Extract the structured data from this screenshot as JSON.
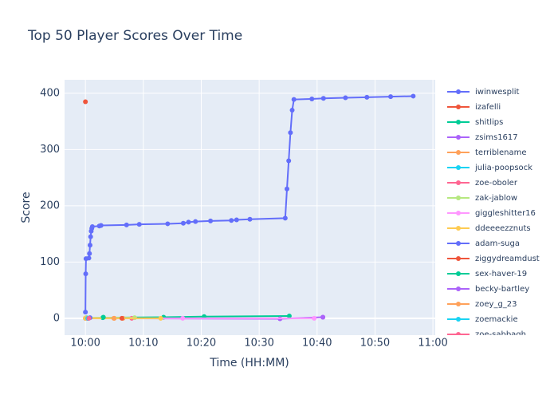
{
  "chart_data": {
    "type": "line",
    "title": "Top 50 Player Scores Over Time",
    "x_label": "Time (HH:MM)",
    "y_label": "Score",
    "xlim": [
      -3.6,
      60.4
    ],
    "ylim": [
      -30,
      424
    ],
    "xticks": [
      {
        "value": 0,
        "label": "10:00"
      },
      {
        "value": 10,
        "label": "10:10"
      },
      {
        "value": 20,
        "label": "10:20"
      },
      {
        "value": 30,
        "label": "10:30"
      },
      {
        "value": 40,
        "label": "10:40"
      },
      {
        "value": 50,
        "label": "10:50"
      },
      {
        "value": 60,
        "label": "11:00"
      }
    ],
    "yticks": [
      0,
      100,
      200,
      300,
      400
    ],
    "grid": true,
    "legend": "right",
    "series": [
      {
        "name": "iwinwesplit",
        "color": "#636efa",
        "x": [
          0,
          0.05,
          0.1,
          0.6,
          0.7,
          0.8,
          0.9,
          1.0,
          1.1,
          1.2,
          2.4,
          2.7,
          7.1,
          9.3,
          14.2,
          16.9,
          17.8,
          19,
          21.6,
          25.2,
          26.1,
          28.4,
          34.5,
          34.8,
          35.1,
          35.4,
          35.7,
          36,
          39.1,
          41.1,
          44.9,
          48.6,
          52.7,
          56.6
        ],
        "values": [
          11,
          79,
          106,
          107,
          115,
          130,
          145,
          155,
          160,
          163,
          164,
          165,
          166,
          167,
          168,
          169,
          171,
          172,
          173,
          174,
          175,
          176,
          178,
          230,
          280,
          330,
          370,
          389,
          390,
          391,
          392,
          393,
          394,
          395
        ]
      },
      {
        "name": "izafelli",
        "color": "#ef553b",
        "x": [
          0
        ],
        "values": [
          385
        ]
      },
      {
        "name": "shitlips",
        "color": "#00cc96",
        "x": [
          0,
          3,
          13.5,
          20.5,
          35.2
        ],
        "values": [
          0,
          1,
          2,
          3,
          4
        ]
      },
      {
        "name": "zsims1617",
        "color": "#ab63fa",
        "x": [
          0,
          33.6,
          41
        ],
        "values": [
          0,
          -1,
          2
        ]
      },
      {
        "name": "terriblename",
        "color": "#ffa15a",
        "x": [
          0,
          5,
          6.5
        ],
        "values": [
          0,
          0,
          0
        ]
      },
      {
        "name": "julia-poopsock",
        "color": "#19d3f3",
        "x": [
          0.2
        ],
        "values": [
          1
        ]
      },
      {
        "name": "zoe-oboler",
        "color": "#ff6692",
        "x": [
          0.3,
          8
        ],
        "values": [
          0,
          0
        ]
      },
      {
        "name": "zak-jablow",
        "color": "#b6e880",
        "x": [
          0.1,
          8.5
        ],
        "values": [
          1,
          1
        ]
      },
      {
        "name": "giggleshitter16",
        "color": "#ff97ff",
        "x": [
          0,
          16.8,
          39.5
        ],
        "values": [
          0,
          0,
          0
        ]
      },
      {
        "name": "ddeeeezznuts",
        "color": "#fecb52",
        "x": [
          0,
          13
        ],
        "values": [
          0,
          0
        ]
      },
      {
        "name": "adam-suga",
        "color": "#636efa",
        "x": [
          0.5,
          0.8
        ],
        "values": [
          0,
          1
        ]
      },
      {
        "name": "ziggydreamdust",
        "color": "#ef553b",
        "x": [
          6.3
        ],
        "values": [
          0
        ]
      },
      {
        "name": "sex-haver-19",
        "color": "#00cc96",
        "x": [
          3.1
        ],
        "values": [
          2
        ]
      },
      {
        "name": "becky-bartley",
        "color": "#ab63fa",
        "x": [
          41
        ],
        "values": [
          2
        ]
      },
      {
        "name": "zoey_g_23",
        "color": "#ffa15a",
        "x": [
          4.9
        ],
        "values": [
          0
        ]
      },
      {
        "name": "zoemackie",
        "color": "#19d3f3",
        "x": [
          0.4
        ],
        "values": [
          0
        ]
      },
      {
        "name": "zoe-sabbagh",
        "color": "#ff6692",
        "x": [
          0.6
        ],
        "values": [
          0
        ]
      }
    ]
  }
}
